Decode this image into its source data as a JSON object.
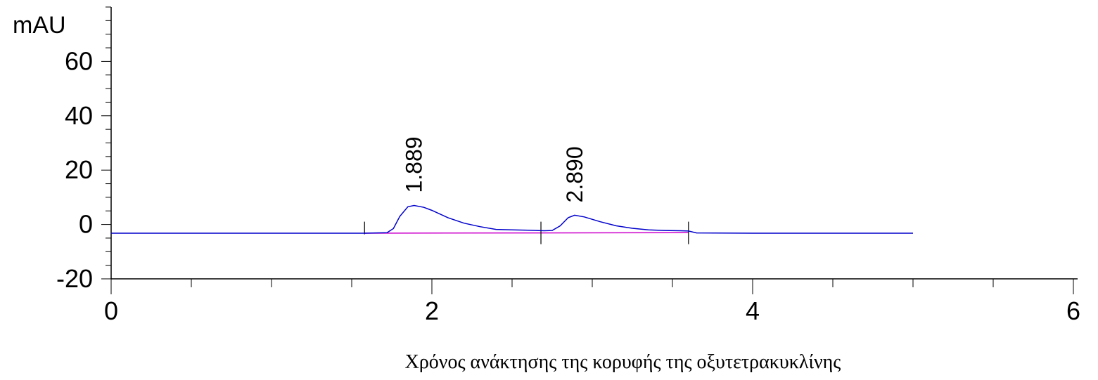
{
  "caption": "Χρόνος ανάκτησης της κορυφής της οξυτετρακυκλίνης",
  "colors": {
    "signal": "#0000cc",
    "baseline": "#cc00cc",
    "axis": "#000000"
  },
  "chart_data": {
    "type": "line",
    "title": "",
    "ylabel": "mAU",
    "xlabel": "",
    "xlim": [
      0,
      6
    ],
    "ylim": [
      -20,
      80
    ],
    "xticks": [
      0,
      2,
      4,
      6
    ],
    "xtick_labels": [
      "0",
      "2",
      "4",
      "6"
    ],
    "yticks": [
      -20,
      0,
      20,
      40,
      60
    ],
    "ytick_labels": [
      "-20",
      "0",
      "20",
      "40",
      "60"
    ],
    "grid": false,
    "series": [
      {
        "x": [
          0,
          1.58,
          1.72,
          1.76,
          1.8,
          1.85,
          1.889,
          1.95,
          2.0,
          2.1,
          2.2,
          2.3,
          2.4,
          2.5,
          2.6,
          2.7,
          2.75,
          2.8,
          2.85,
          2.89,
          2.95,
          3.05,
          3.15,
          3.25,
          3.35,
          3.45,
          3.55,
          3.6,
          3.65,
          4.0,
          4.5,
          5.0
        ],
        "y": [
          -3.2,
          -3.2,
          -3.0,
          -1.5,
          3.0,
          6.5,
          7.0,
          6.3,
          5.2,
          2.5,
          0.5,
          -0.8,
          -1.8,
          -2.0,
          -2.1,
          -2.3,
          -2.2,
          -0.5,
          2.5,
          3.4,
          2.8,
          1.0,
          -0.5,
          -1.4,
          -2.0,
          -2.2,
          -2.3,
          -2.4,
          -3.1,
          -3.2,
          -3.2,
          -3.2
        ]
      }
    ],
    "baselines": [
      {
        "x": [
          1.58,
          2.68
        ],
        "y": [
          -3.2,
          -3.1
        ]
      },
      {
        "x": [
          2.68,
          3.6
        ],
        "y": [
          -3.1,
          -3.0
        ]
      }
    ],
    "integration_marks": [
      1.58,
      2.68,
      3.6
    ],
    "annotations": [
      {
        "x": 1.889,
        "y": 7.0,
        "text": "1.889"
      },
      {
        "x": 2.89,
        "y": 3.4,
        "text": "2.890"
      }
    ]
  }
}
